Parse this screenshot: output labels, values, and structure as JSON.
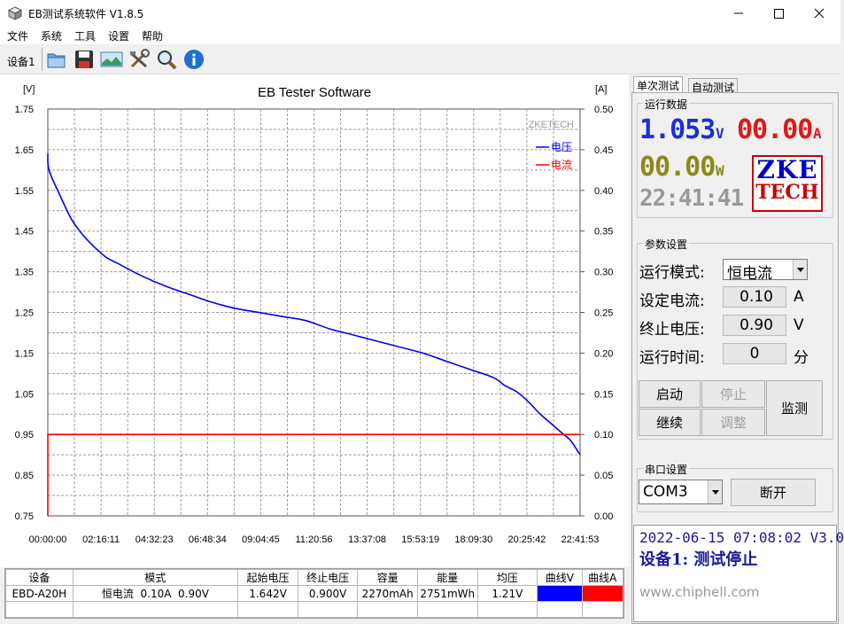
{
  "window": {
    "title": "EB测试系统软件 V1.8.5"
  },
  "menu": [
    "文件",
    "系统",
    "工具",
    "设置",
    "帮助"
  ],
  "toolbar": {
    "device_label": "设备1"
  },
  "chart_data": {
    "type": "line",
    "title": "EB Tester Software",
    "watermark": "ZKETECH",
    "ylabel_left": "[V]",
    "ylabel_right": "[A]",
    "ylim_left": [
      0.75,
      1.75
    ],
    "ylim_right": [
      0.0,
      0.5
    ],
    "yticks_left": [
      "1.75",
      "1.65",
      "1.55",
      "1.45",
      "1.35",
      "1.25",
      "1.15",
      "1.05",
      "0.95",
      "0.85",
      "0.75"
    ],
    "yticks_right": [
      "0.50",
      "0.45",
      "0.40",
      "0.35",
      "0.30",
      "0.25",
      "0.20",
      "0.15",
      "0.10",
      "0.05",
      "0.00"
    ],
    "xticks": [
      "00:00:00",
      "02:16:11",
      "04:32:23",
      "06:48:34",
      "09:04:45",
      "11:20:56",
      "13:37:08",
      "15:53:19",
      "18:09:30",
      "20:25:42",
      "22:41:53"
    ],
    "xlim_seconds": [
      0,
      81713
    ],
    "series": [
      {
        "name": "电压",
        "axis": "left",
        "color": "#0000ff",
        "x_hours": [
          0,
          0.05,
          0.5,
          1,
          1.5,
          2,
          2.5,
          3,
          4,
          5,
          6,
          7,
          8,
          9,
          10,
          11,
          12,
          13,
          14,
          15,
          16,
          17,
          18,
          19,
          19.5,
          20,
          20.5,
          21,
          21.5,
          22,
          22.3,
          22.7
        ],
        "values": [
          1.64,
          1.6,
          1.54,
          1.48,
          1.44,
          1.41,
          1.385,
          1.37,
          1.34,
          1.315,
          1.295,
          1.275,
          1.26,
          1.25,
          1.24,
          1.23,
          1.21,
          1.195,
          1.18,
          1.165,
          1.15,
          1.13,
          1.11,
          1.09,
          1.07,
          1.055,
          1.03,
          1.0,
          0.975,
          0.95,
          0.935,
          0.9
        ]
      },
      {
        "name": "电流",
        "axis": "right",
        "color": "#ff0000",
        "x_hours": [
          0,
          0.001,
          22.7
        ],
        "values": [
          0.0,
          0.1,
          0.1
        ]
      }
    ],
    "legend": "top-right"
  },
  "table": {
    "headers": [
      "设备",
      "模式",
      "起始电压",
      "终止电压",
      "容量",
      "能量",
      "均压",
      "曲线V",
      "曲线A"
    ],
    "row": [
      "EBD-A20H",
      "恒电流  0.10A  0.90V",
      "1.642V",
      "0.900V",
      "2270mAh",
      "2751mWh",
      "1.21V"
    ],
    "curve_colors": [
      "#0000ff",
      "#ff0000"
    ]
  },
  "right": {
    "tabs": [
      "单次测试",
      "自动测试"
    ],
    "run_data_label": "运行数据",
    "voltage": "1.053",
    "voltage_unit": "V",
    "current": "00.00",
    "current_unit": "A",
    "power": "00.00",
    "power_unit": "W",
    "time": "22:41:41",
    "logo_top": "ZKE",
    "logo_bottom": "TECH",
    "params_label": "参数设置",
    "mode_label": "运行模式:",
    "mode_value": "恒电流",
    "set_current_label": "设定电流:",
    "set_current_value": "0.10",
    "set_current_unit": "A",
    "end_voltage_label": "终止电压:",
    "end_voltage_value": "0.90",
    "end_voltage_unit": "V",
    "run_time_label": "运行时间:",
    "run_time_value": "0",
    "run_time_unit": "分",
    "btn_start": "启动",
    "btn_stop": "停止",
    "btn_continue": "继续",
    "btn_adjust": "调整",
    "btn_monitor": "监测",
    "serial_label": "串口设置",
    "com_value": "COM3",
    "btn_disconnect": "断开",
    "status_line1": "2022-06-15 07:08:02  V3.0",
    "status_line2": "设备1: 测试停止",
    "watermark": "www.chiphell.com"
  }
}
